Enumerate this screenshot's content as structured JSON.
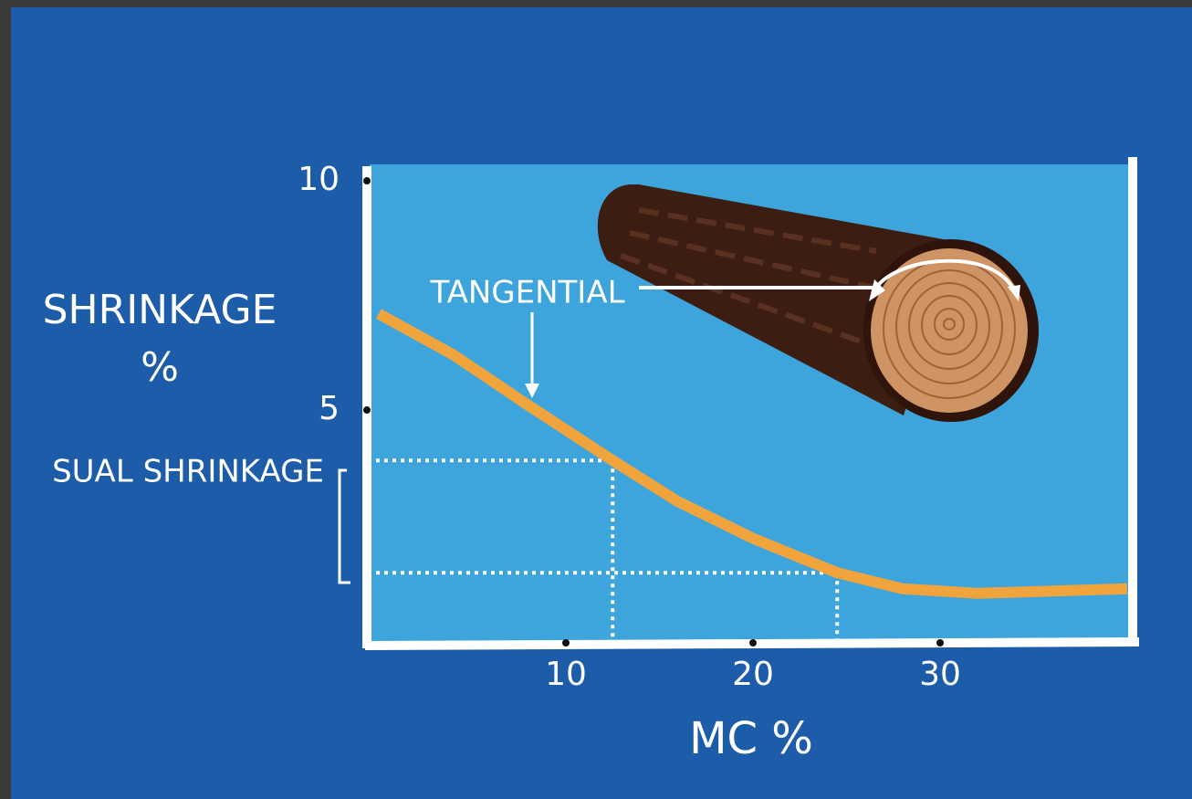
{
  "chart_data": {
    "type": "line",
    "ylabel": [
      "SHRINKAGE",
      "%"
    ],
    "xlabel": "MC %",
    "x": [
      0,
      4,
      8,
      12.5,
      16,
      20,
      24.5,
      28,
      32,
      36,
      40
    ],
    "values": [
      7.1,
      6.2,
      5.1,
      3.9,
      3.0,
      2.2,
      1.45,
      1.1,
      1.0,
      1.05,
      1.1
    ],
    "color": "#f2a43c",
    "xlim": [
      0,
      40
    ],
    "ylim": [
      0,
      10.3
    ],
    "xticks": [
      10,
      20,
      30
    ],
    "yticks": [
      5,
      10
    ],
    "guides": {
      "x": [
        12.5,
        24.5
      ],
      "y": [
        3.9,
        1.45
      ]
    },
    "annotations": {
      "arrow_label": "TANGENTIAL",
      "bracket_label": "SUAL SHRINKAGE"
    }
  }
}
